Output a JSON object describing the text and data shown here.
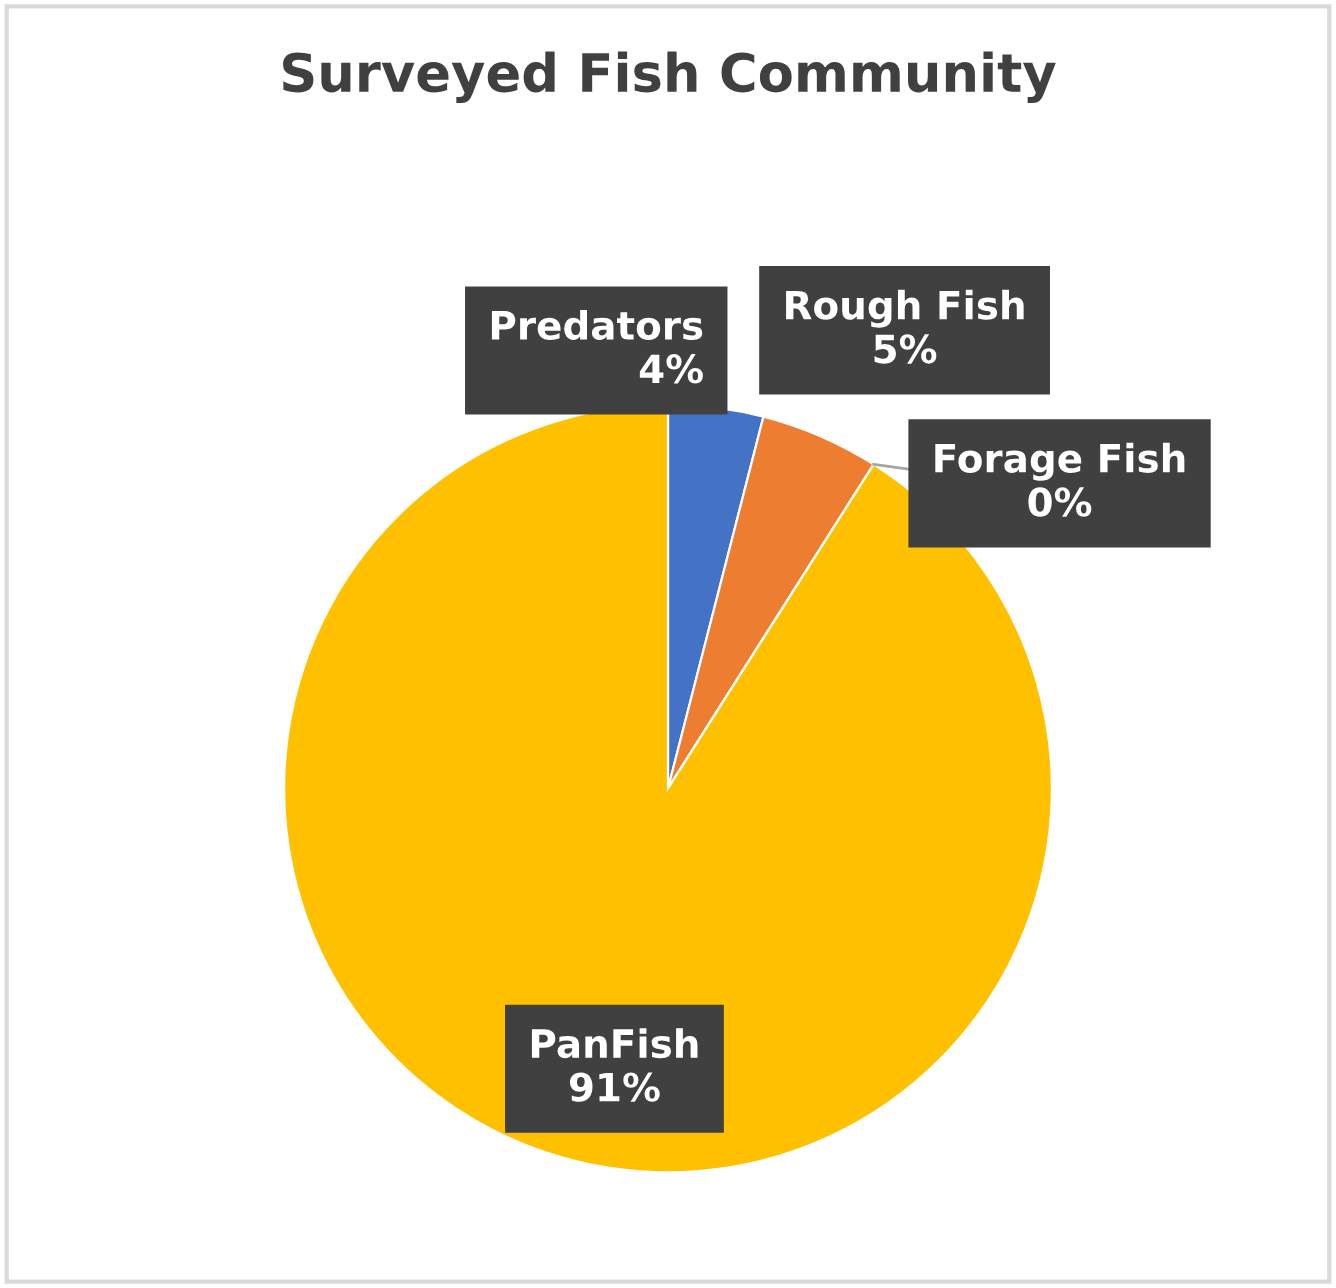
{
  "chart_data": {
    "type": "pie",
    "title": "Surveyed Fish Community",
    "categories": [
      "Predators",
      "Rough Fish",
      "Forage Fish",
      "PanFish"
    ],
    "values": [
      4,
      5,
      0,
      91
    ],
    "colors": [
      "#4472c4",
      "#ed7d31",
      "#a5a5a5",
      "#ffc000"
    ],
    "value_labels": [
      "4%",
      "5%",
      "0%",
      "91%"
    ]
  }
}
